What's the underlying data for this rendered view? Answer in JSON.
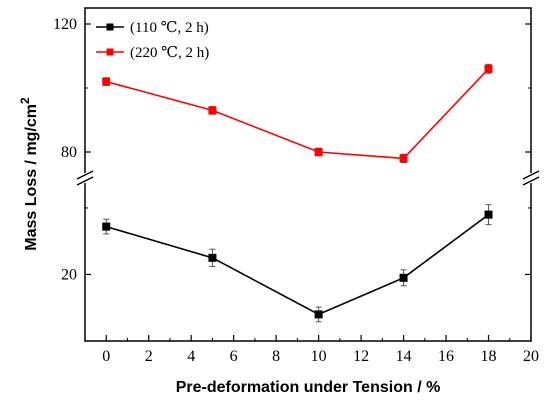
{
  "chart_data": {
    "type": "line",
    "xlabel": "Pre-deformation under Tension / %",
    "ylabel": "Mass Loss / mg/cm",
    "ylabel_sup": "2",
    "xlim": [
      -1,
      20
    ],
    "x_ticks": [
      0,
      2,
      4,
      6,
      8,
      10,
      12,
      14,
      16,
      18,
      20
    ],
    "broken_y_axis": true,
    "ylim_lower": [
      10,
      33
    ],
    "ylim_upper": [
      75,
      125
    ],
    "y_ticks_lower": [
      20
    ],
    "y_ticks_upper": [
      80,
      120
    ],
    "legend_position": "top-left",
    "series": [
      {
        "name": "(110 ℃, 2 h)",
        "color": "#000000",
        "marker": "square",
        "x": [
          0,
          5,
          10,
          14,
          18
        ],
        "y": [
          27.2,
          22.5,
          14.0,
          19.5,
          29.0
        ],
        "error": [
          1.1,
          1.3,
          1.1,
          1.2,
          1.5
        ]
      },
      {
        "name": "(220 ℃, 2 h)",
        "color": "#ff0000",
        "marker": "square",
        "x": [
          0,
          5,
          10,
          14,
          18
        ],
        "y": [
          102.0,
          93.0,
          80.0,
          78.0,
          106.0
        ],
        "error": [
          1.2,
          1.2,
          1.2,
          1.3,
          1.4
        ]
      }
    ]
  }
}
